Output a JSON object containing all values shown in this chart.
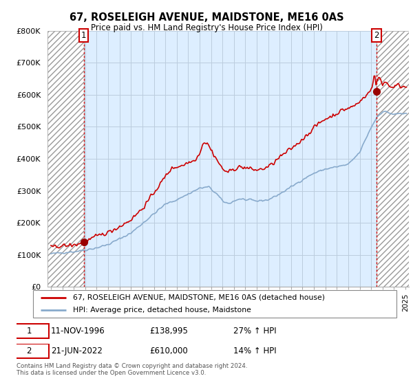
{
  "title": "67, ROSELEIGH AVENUE, MAIDSTONE, ME16 0AS",
  "subtitle": "Price paid vs. HM Land Registry's House Price Index (HPI)",
  "ylim": [
    0,
    800000
  ],
  "yticks": [
    0,
    100000,
    200000,
    300000,
    400000,
    500000,
    600000,
    700000,
    800000
  ],
  "ytick_labels": [
    "£0",
    "£100K",
    "£200K",
    "£300K",
    "£400K",
    "£500K",
    "£600K",
    "£700K",
    "£800K"
  ],
  "line1_color": "#cc0000",
  "line2_color": "#88aacc",
  "marker_color": "#990000",
  "grid_color": "#bbccdd",
  "bg_color": "#ffffff",
  "plot_bg": "#ddeeff",
  "hatch_bg": "#e8e8e8",
  "legend1": "67, ROSELEIGH AVENUE, MAIDSTONE, ME16 0AS (detached house)",
  "legend2": "HPI: Average price, detached house, Maidstone",
  "annotation1_date": "11-NOV-1996",
  "annotation1_price": "£138,995",
  "annotation1_hpi": "27% ↑ HPI",
  "annotation2_date": "21-JUN-2022",
  "annotation2_price": "£610,000",
  "annotation2_hpi": "14% ↑ HPI",
  "footer": "Contains HM Land Registry data © Crown copyright and database right 2024.\nThis data is licensed under the Open Government Licence v3.0.",
  "point1_x": 1996.87,
  "point1_y": 138995,
  "point2_x": 2022.47,
  "point2_y": 610000,
  "xlim_left": 1993.7,
  "xlim_right": 2025.3
}
